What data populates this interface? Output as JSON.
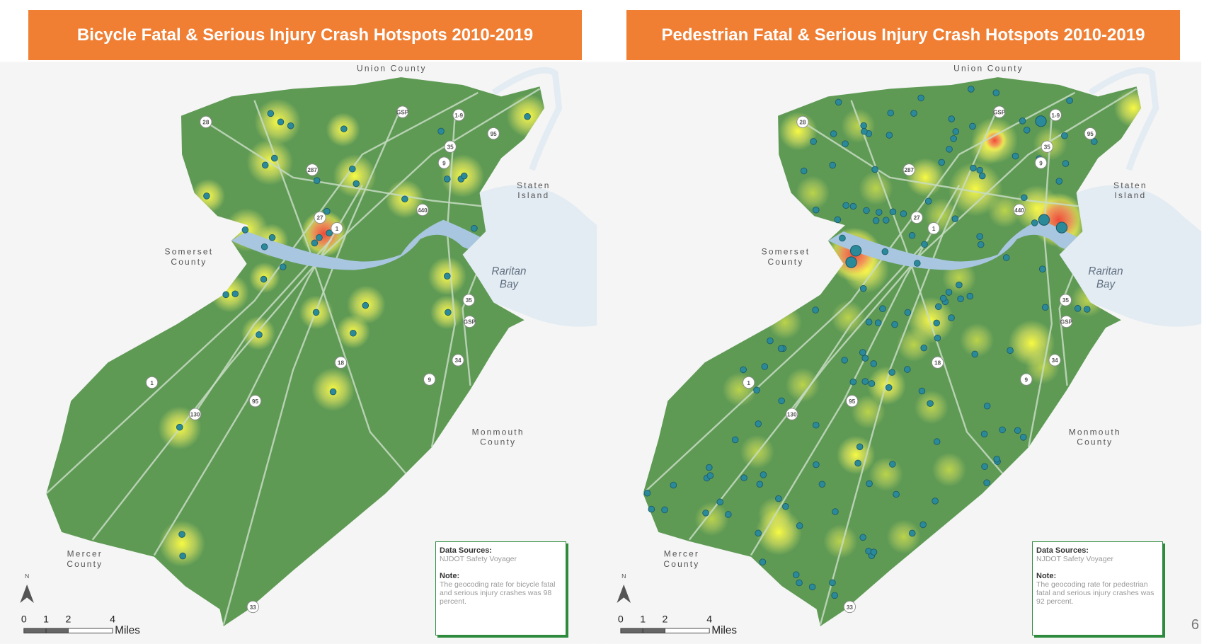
{
  "page_number": "6",
  "maps": [
    {
      "title": "Bicycle Fatal & Serious Injury Crash Hotspots 2010-2019",
      "region_labels": [
        "Union County",
        "Staten Island",
        "Somerset County",
        "Raritan Bay",
        "Monmouth County",
        "Mercer County"
      ],
      "route_shields": [
        "28",
        "GSP",
        "1-9",
        "95",
        "35",
        "9",
        "287",
        "440",
        "27",
        "1",
        "35",
        "GSP",
        "34",
        "18",
        "9",
        "1",
        "130",
        "95",
        "33"
      ],
      "north": "N",
      "scale": {
        "ticks": [
          0,
          1,
          2,
          4
        ],
        "unit": "Miles"
      },
      "legend": {
        "sources_heading": "Data Sources:",
        "sources": "NJDOT Safety Voyager",
        "note_heading": "Note:",
        "note": "The geocoding rate for bicycle fatal and serious injury crashes was 98 percent."
      }
    },
    {
      "title": "Pedestrian Fatal & Serious Injury Crash Hotspots 2010-2019",
      "region_labels": [
        "Union County",
        "Staten Island",
        "Somerset County",
        "Raritan Bay",
        "Monmouth County",
        "Mercer County"
      ],
      "route_shields": [
        "28",
        "GSP",
        "1-9",
        "95",
        "35",
        "9",
        "287",
        "440",
        "27",
        "1",
        "35",
        "GSP",
        "34",
        "18",
        "9",
        "1",
        "130",
        "95",
        "33"
      ],
      "north": "N",
      "scale": {
        "ticks": [
          0,
          1,
          2,
          4
        ],
        "unit": "Miles"
      },
      "legend": {
        "sources_heading": "Data Sources:",
        "sources": "NJDOT Safety Voyager",
        "note_heading": "Note:",
        "note": "The geocoding rate for pedestrian fatal and serious injury crashes was 92 percent."
      }
    }
  ]
}
